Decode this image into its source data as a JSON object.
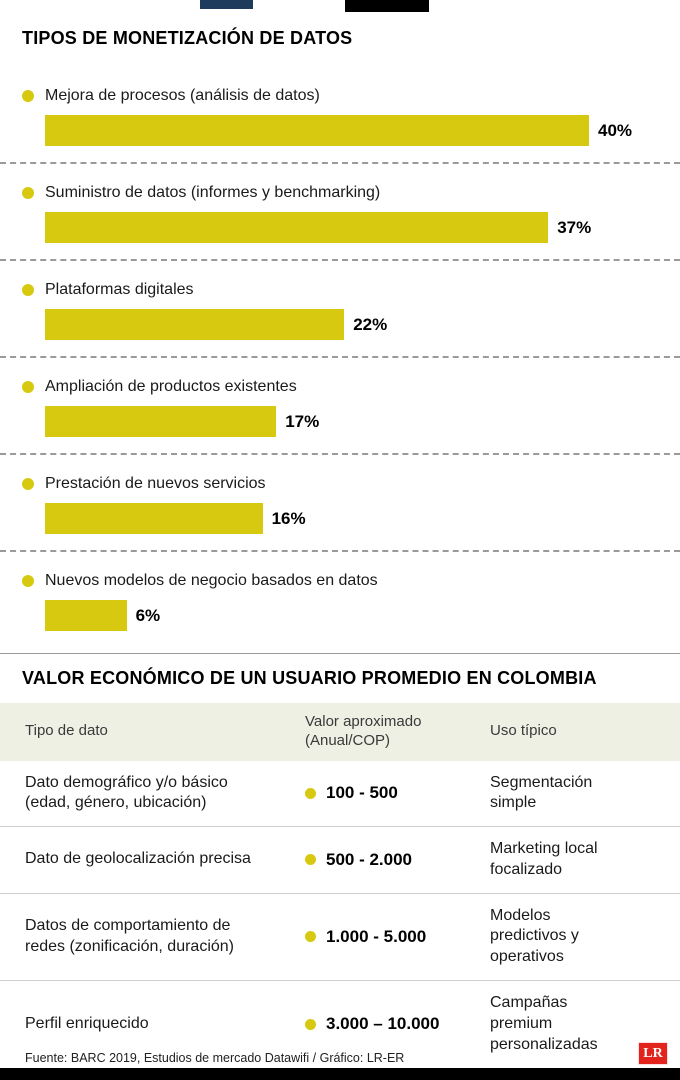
{
  "chart_data": {
    "type": "bar",
    "orientation": "horizontal",
    "title": "TIPOS DE MONETIZACIÓN DE DATOS",
    "categories": [
      "Mejora de procesos (análisis de datos)",
      "Suministro de datos (informes y benchmarking)",
      "Plataformas digitales",
      "Ampliación de productos existentes",
      "Prestación de nuevos servicios",
      "Nuevos modelos de negocio basados en datos"
    ],
    "values": [
      40,
      37,
      22,
      17,
      16,
      6
    ],
    "value_suffix": "%",
    "xlim": [
      0,
      44
    ],
    "grid": false,
    "legend": false,
    "bar_color": "#d7c90f"
  },
  "table": {
    "title": "VALOR ECONÓMICO DE UN USUARIO PROMEDIO EN COLOMBIA",
    "headers": [
      "Tipo de dato",
      "Valor aproximado (Anual/COP)",
      "Uso típico"
    ],
    "rows": [
      {
        "tipo": "Dato demográfico y/o básico (edad, género, ubicación)",
        "valor": "100 - 500",
        "uso": "Segmentación simple"
      },
      {
        "tipo": "Dato de geolocalización precisa",
        "valor": "500 - 2.000",
        "uso": "Marketing local focalizado"
      },
      {
        "tipo": "Datos de comportamiento de redes (zonificación, duración)",
        "valor": "1.000 - 5.000",
        "uso": "Modelos predictivos y operativos"
      },
      {
        "tipo": "Perfil enriquecido",
        "valor": "3.000 – 10.000",
        "uso": "Campañas premium personalizadas"
      }
    ]
  },
  "footer": {
    "source": "Fuente: BARC 2019, Estudios de mercado Datawifi / Gráfico: LR-ER",
    "logo": "LR"
  },
  "colors": {
    "accent_yellow": "#d7c90f",
    "header_band": "#eef0e3",
    "top_navy": "#1e3a5c",
    "logo_red": "#e3241d"
  }
}
